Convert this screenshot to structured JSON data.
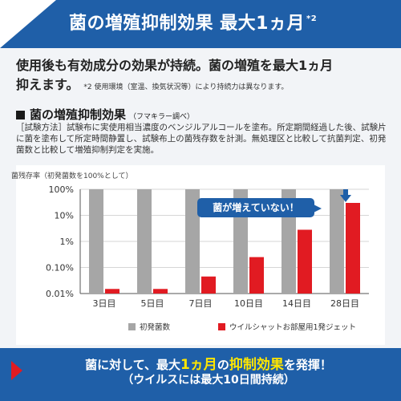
{
  "header": {
    "title": "菌の増殖抑制効果 最大1ヵ月",
    "sup": "*2"
  },
  "lead": {
    "line1": "使用後も有効成分の効果が持続。菌の増殖を最大1ヵ月",
    "line2": "抑えます。",
    "note": "*2 使用環境（室温、換気状況等）により持続力は異なります。"
  },
  "section": {
    "title": "菌の増殖抑制効果",
    "source": "（フマキラー調べ）",
    "method": "［試験方法］試験布に実使用相当濃度のベンジルアルコールを塗布。所定期間経過した後、試験片に菌を塗布して所定時間静置し、試験布上の菌残存数を計測。無処理区と比較して抗菌判定、初発菌数と比較して増殖抑制判定を実施。"
  },
  "callout": {
    "text": "菌が増えていない！"
  },
  "banner": {
    "line1_a": "菌に対して、最大",
    "line1_b": "1ヵ月",
    "line1_c": "の",
    "line1_d": "抑制効果",
    "line1_e": "を発揮！",
    "line2": "（ウイルスには最大10日間持続）"
  },
  "colors": {
    "brand_blue": "#1f5fa8",
    "accent_red": "#e11b22",
    "initial_gray": "#a6a6a6",
    "highlight_yellow": "#ffe600"
  },
  "chart_data": {
    "type": "bar",
    "ylabel": "菌残存率（初発菌数を100%として）",
    "yscale": "log",
    "ylim": [
      0.01,
      100
    ],
    "yticks": [
      "100%",
      "10%",
      "1%",
      "0.10%",
      "0.01%"
    ],
    "categories": [
      "3日目",
      "5日目",
      "7日目",
      "10日目",
      "14日目",
      "28日目"
    ],
    "series": [
      {
        "name": "初発菌数",
        "color": "#a6a6a6",
        "values": [
          100,
          100,
          100,
          100,
          100,
          100
        ]
      },
      {
        "name": "ウイルシャットお部屋用1発ジェット",
        "color": "#e11b22",
        "values": [
          0.015,
          0.015,
          0.045,
          0.25,
          2.8,
          30
        ]
      }
    ],
    "grid": true,
    "legend": "bottom"
  }
}
